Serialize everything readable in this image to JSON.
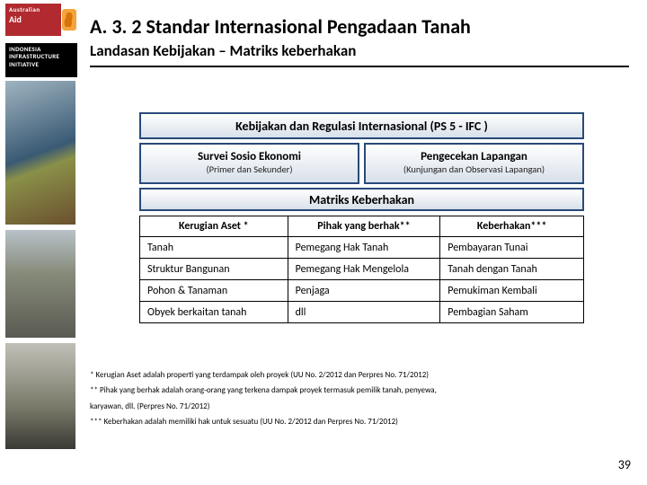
{
  "sidebar": {
    "aid_line1": "Australian",
    "aid_line2": "Aid",
    "iii_line1": "INDONESIA",
    "iii_line2": "INFRASTRUCTURE",
    "iii_line3": "INITIATIVE"
  },
  "header": {
    "title": "A. 3. 2 Standar Internasional Pengadaan Tanah",
    "subtitle": "Landasan Kebijakan – Matriks keberhakan"
  },
  "diagram": {
    "top": "Kebijakan dan Regulasi Internasional (PS 5 - IFC )",
    "left_title": "Survei Sosio Ekonomi",
    "left_sub": "(Primer dan Sekunder)",
    "right_title": "Pengecekan Lapangan",
    "right_sub": "(Kunjungan dan Observasi Lapangan)",
    "matrix": "Matriks Keberhakan"
  },
  "table": {
    "headers": [
      "Kerugian Aset *",
      "Pihak yang berhak**",
      "Keberhakan***"
    ],
    "rows": [
      [
        "Tanah",
        "Pemegang Hak Tanah",
        "Pembayaran Tunai"
      ],
      [
        "Struktur Bangunan",
        "Pemegang Hak Mengelola",
        "Tanah dengan Tanah"
      ],
      [
        "Pohon & Tanaman",
        "Penjaga",
        "Pemukiman Kembali"
      ],
      [
        "Obyek berkaitan tanah",
        "dll",
        "Pembagian Saham"
      ]
    ]
  },
  "footnotes": {
    "n1": "* Kerugian Aset adalah properti yang terdampak oleh proyek (UU No. 2/2012 dan Perpres No. 71/2012)",
    "n2": "** Pihak yang berhak adalah orang-orang yang terkena dampak proyek termasuk pemilik tanah, penyewa,",
    "n2b": "karyawan, dll. (Perpres No. 71/2012)",
    "n3": "*** Keberhakan adalah memiliki hak untuk sesuatu (UU No. 2/2012 dan Perpres No. 71/2012)"
  },
  "page_number": "39",
  "colors": {
    "cell_border": "#294a7a",
    "cell_grad_from": "#ffffff",
    "cell_grad_to": "#d8e0ea",
    "aid_red": "#b02a2f",
    "kangaroo": "#f4a43a"
  }
}
